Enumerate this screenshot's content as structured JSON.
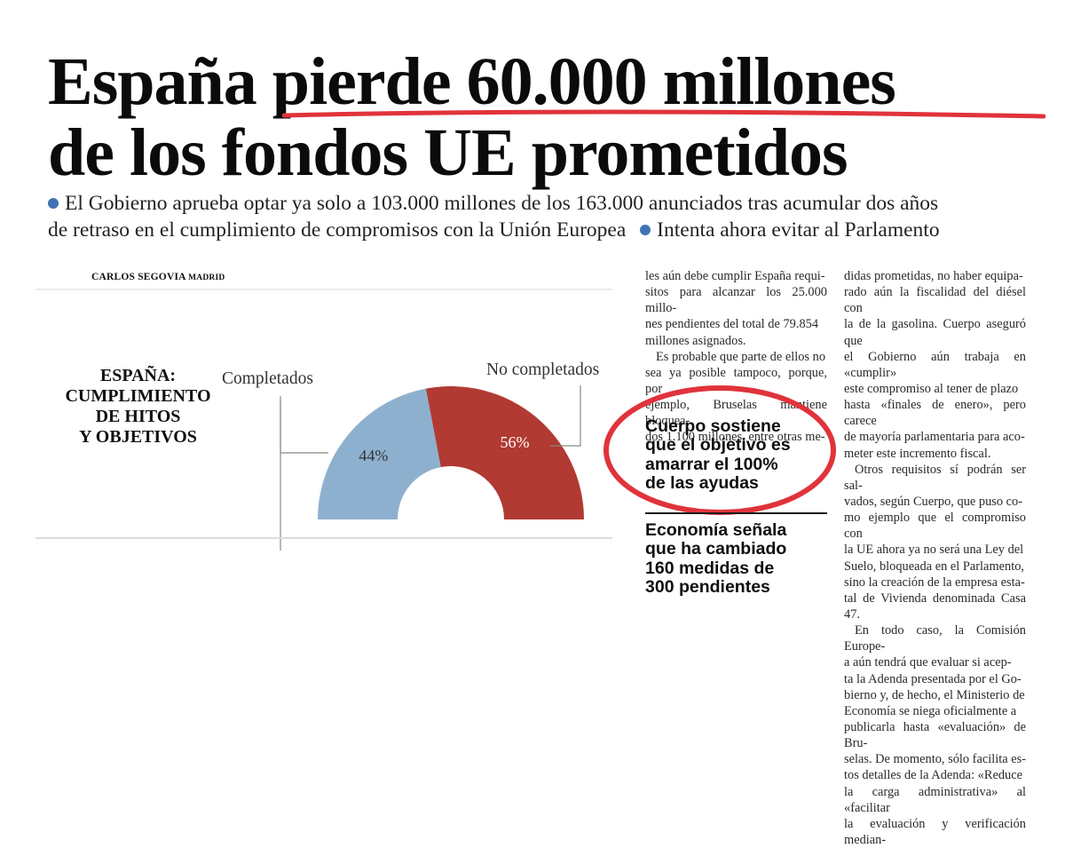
{
  "headline": {
    "line1": "España pierde 60.000 millones",
    "line2": "de los fondos UE prometidos"
  },
  "subhead": {
    "line1": "El Gobierno aprueba optar ya solo a 103.000 millones de los 163.000 anunciados tras acumular dos años",
    "line2a": "de retraso en el cumplimiento de compromisos con la Unión Europea",
    "line2b": "Intenta ahora evitar al Parlamento"
  },
  "byline": {
    "author": "CARLOS SEGOVIA",
    "city": "MADRID"
  },
  "chart_data": {
    "type": "pie",
    "variant": "half-donut",
    "title": "ESPAÑA: CUMPLIMIENTO DE HITOS Y OBJETIVOS",
    "title_lines": [
      "ESPAÑA:",
      "CUMPLIMIENTO",
      "DE HITOS",
      "Y OBJETIVOS"
    ],
    "categories": [
      "Completados",
      "No completados"
    ],
    "values": [
      44,
      56
    ],
    "value_labels": [
      "44%",
      "56%"
    ],
    "colors": [
      "#8eb0cf",
      "#b13a33"
    ]
  },
  "column1": [
    "les aún debe cumplir España requi-",
    "sitos para alcanzar los 25.000 millo-",
    "nes pendientes del total de 79.854",
    "millones asignados.",
    "Es probable que parte de ellos no",
    "sea ya posible tampoco, porque, por",
    "ejemplo, Bruselas mantiene bloquea-",
    "dos 1.100 millones, entre otras me-"
  ],
  "pullquote1": [
    "Cuerpo sostiene",
    "que el objetivo es",
    "amarrar el 100%",
    "de las ayudas"
  ],
  "pullquote2": [
    "Economía señala",
    "que ha cambiado",
    "160 medidas de",
    "300 pendientes"
  ],
  "column2": [
    "didas prometidas, no haber equipa-",
    "rado aún la fiscalidad del diésel con",
    "la de la gasolina. Cuerpo aseguró que",
    "el Gobierno aún trabaja en «cumplir»",
    "este compromiso al tener de plazo",
    "hasta «finales de enero», pero carece",
    "de mayoría parlamentaria para aco-",
    "meter este incremento fiscal.",
    "Otros requisitos sí podrán ser sal-",
    "vados, según Cuerpo, que puso co-",
    "mo ejemplo que el compromiso con",
    "la UE ahora ya no será una Ley del",
    "Suelo, bloqueada en el Parlamento,",
    "sino la creación de la empresa esta-",
    "tal de Vivienda denominada Casa 47.",
    "En todo caso, la Comisión Europe-",
    "a aún tendrá que evaluar si acep-",
    "ta la Adenda presentada por el Go-",
    "bierno y, de hecho, el Ministerio de",
    "Economía se niega oficialmente a",
    "publicarla hasta «evaluación» de Bru-",
    "selas. De momento, sólo facilita es-",
    "tos detalles de la Adenda: «Reduce",
    "la carga administrativa» al «facilitar",
    "la evaluación y verificación median-"
  ],
  "colors": {
    "bullet": "#3f73b6",
    "highlight": "#e0333b"
  }
}
